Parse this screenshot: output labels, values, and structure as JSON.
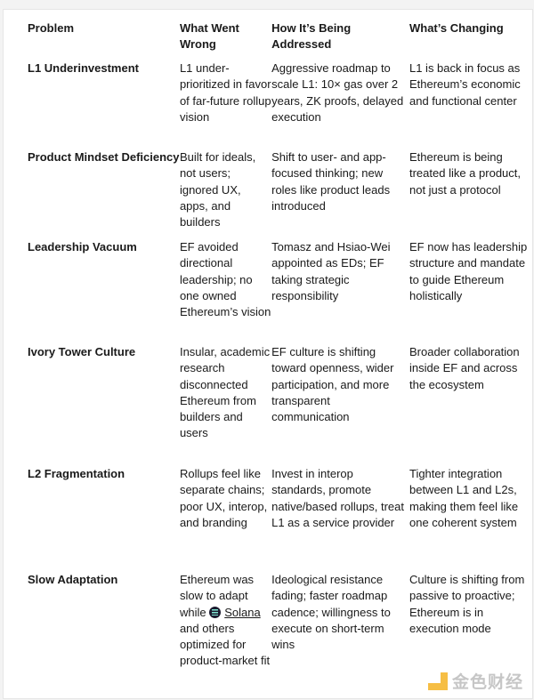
{
  "headers": [
    "Problem",
    "What Went Wrong",
    "How It’s Being Addressed",
    "What’s Changing"
  ],
  "rows": [
    {
      "problem": "L1 Underinvestment",
      "wrong": "L1 under-prioritized in favor of far-future rollup vision",
      "addressed": "Aggressive roadmap to scale L1: 10× gas over 2 years, ZK proofs, delayed execution",
      "changing": "L1 is back in focus as Ethereum’s economic and functional center"
    },
    {
      "problem": "Product Mindset Deficiency",
      "wrong": "Built for ideals, not users; ignored UX, apps, and builders",
      "addressed": "Shift to user- and app-focused thinking; new roles like product leads introduced",
      "changing": "Ethereum is being treated like a product, not just a protocol"
    },
    {
      "problem": "Leadership Vacuum",
      "wrong": "EF avoided directional leadership; no one owned Ethereum’s vision",
      "addressed": "Tomasz and Hsiao-Wei appointed as EDs; EF taking strategic responsibility",
      "changing": "EF now has leadership structure and mandate to guide Ethereum holistically"
    },
    {
      "problem": "Ivory Tower Culture",
      "wrong": "Insular, academic research disconnected Ethereum from builders and users",
      "addressed": "EF culture is shifting toward openness, wider participation, and more transparent communication",
      "changing": "Broader collaboration inside EF and across the ecosystem"
    },
    {
      "problem": "L2 Fragmentation",
      "wrong": "Rollups feel like separate chains; poor UX, interop, and branding",
      "addressed": "Invest in interop standards, promote native/based rollups, treat L1 as a service provider",
      "changing": "Tighter integration between L1 and L2s, making them feel like one coherent system"
    },
    {
      "problem": "Slow Adaptation",
      "wrong_before": "Ethereum was slow to adapt while",
      "wrong_link": "Solana",
      "wrong_after": "and others optimized for product-market fit",
      "addressed": "Ideological resistance fading; faster roadmap cadence; willingness to execute on short-term wins",
      "changing": "Culture is shifting from passive to proactive; Ethereum is in execution mode"
    }
  ],
  "watermark": {
    "text": "金色财经",
    "color": "#f5b324"
  }
}
